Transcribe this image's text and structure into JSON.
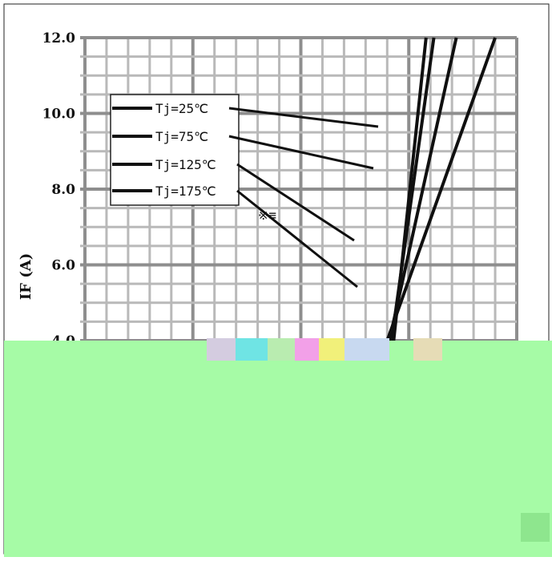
{
  "chart_data": {
    "type": "line",
    "ylabel": "IF (A)",
    "ylim": [
      4.0,
      12.0
    ],
    "yticks": [
      {
        "value": 12.0,
        "label": "12.0"
      },
      {
        "value": 10.0,
        "label": "10.0"
      },
      {
        "value": 8.0,
        "label": "8.0"
      },
      {
        "value": 6.0,
        "label": "6.0"
      },
      {
        "value": 4.0,
        "label": "4.0"
      }
    ],
    "series": [
      {
        "name": "Tj=25℃",
        "points": [
          [
            0.715,
            4.0
          ],
          [
            0.79,
            12.0
          ]
        ]
      },
      {
        "name": "Tj=75℃",
        "points": [
          [
            0.71,
            4.0
          ],
          [
            0.808,
            12.0
          ]
        ]
      },
      {
        "name": "Tj=125℃",
        "points": [
          [
            0.705,
            4.0
          ],
          [
            0.86,
            12.0
          ]
        ]
      },
      {
        "name": "Tj=175℃",
        "points": [
          [
            0.7,
            4.0
          ],
          [
            0.95,
            12.0
          ]
        ]
      }
    ],
    "legend_position": "top-left",
    "grid": true,
    "annotation": "※≡"
  },
  "colors": {
    "line": "#101010",
    "grid": "#b9b9b9",
    "grid_major": "#8e8e8e",
    "occlusion": "#a6fba6"
  }
}
